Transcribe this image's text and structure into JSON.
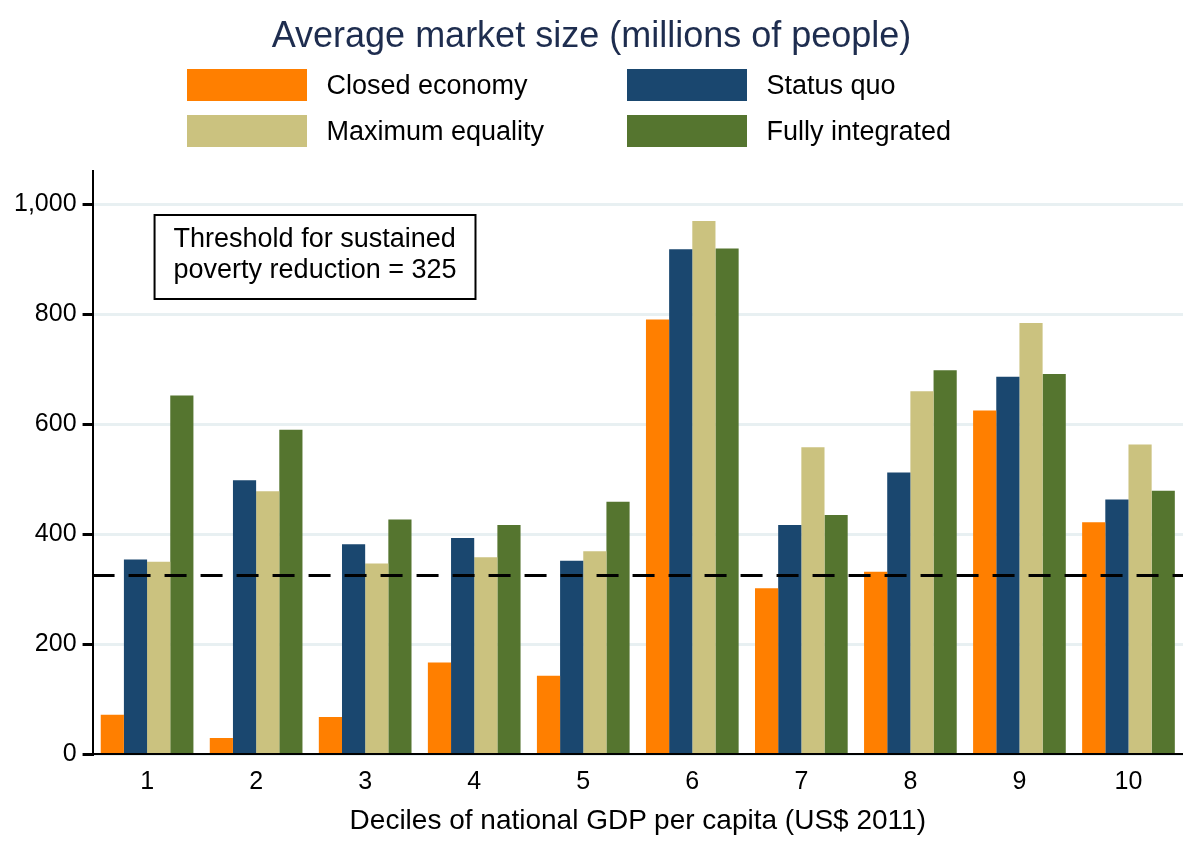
{
  "chart_data": {
    "type": "bar",
    "title": "Average market size (millions of people)",
    "xlabel": "Deciles of national GDP per capita (US$ 2011)",
    "categories": [
      "1",
      "2",
      "3",
      "4",
      "5",
      "6",
      "7",
      "8",
      "9",
      "10"
    ],
    "series": [
      {
        "name": "Closed economy",
        "color": "#ff7f00",
        "values": [
          72,
          30,
          68,
          167,
          143,
          790,
          302,
          332,
          625,
          422
        ]
      },
      {
        "name": "Status quo",
        "color": "#1a476f",
        "values": [
          354,
          498,
          382,
          393,
          352,
          918,
          417,
          512,
          686,
          463
        ]
      },
      {
        "name": "Maximum equality",
        "color": "#cbc27f",
        "values": [
          350,
          478,
          347,
          358,
          369,
          969,
          558,
          660,
          784,
          563
        ]
      },
      {
        "name": "Fully integrated",
        "color": "#55752f",
        "values": [
          652,
          590,
          427,
          417,
          459,
          919,
          435,
          698,
          691,
          479
        ]
      }
    ],
    "ylim": [
      0,
      1060
    ],
    "yticks": [
      0,
      200,
      400,
      600,
      800,
      {
        "value": 1000,
        "label": "1,000"
      }
    ],
    "grid": "y",
    "legend": "top",
    "ref_lines": [
      {
        "axis": "y",
        "value": 325,
        "color": "#000000",
        "line_style": "dashed"
      }
    ],
    "annotations": [
      "Threshold for sustained poverty reduction = 325"
    ]
  }
}
